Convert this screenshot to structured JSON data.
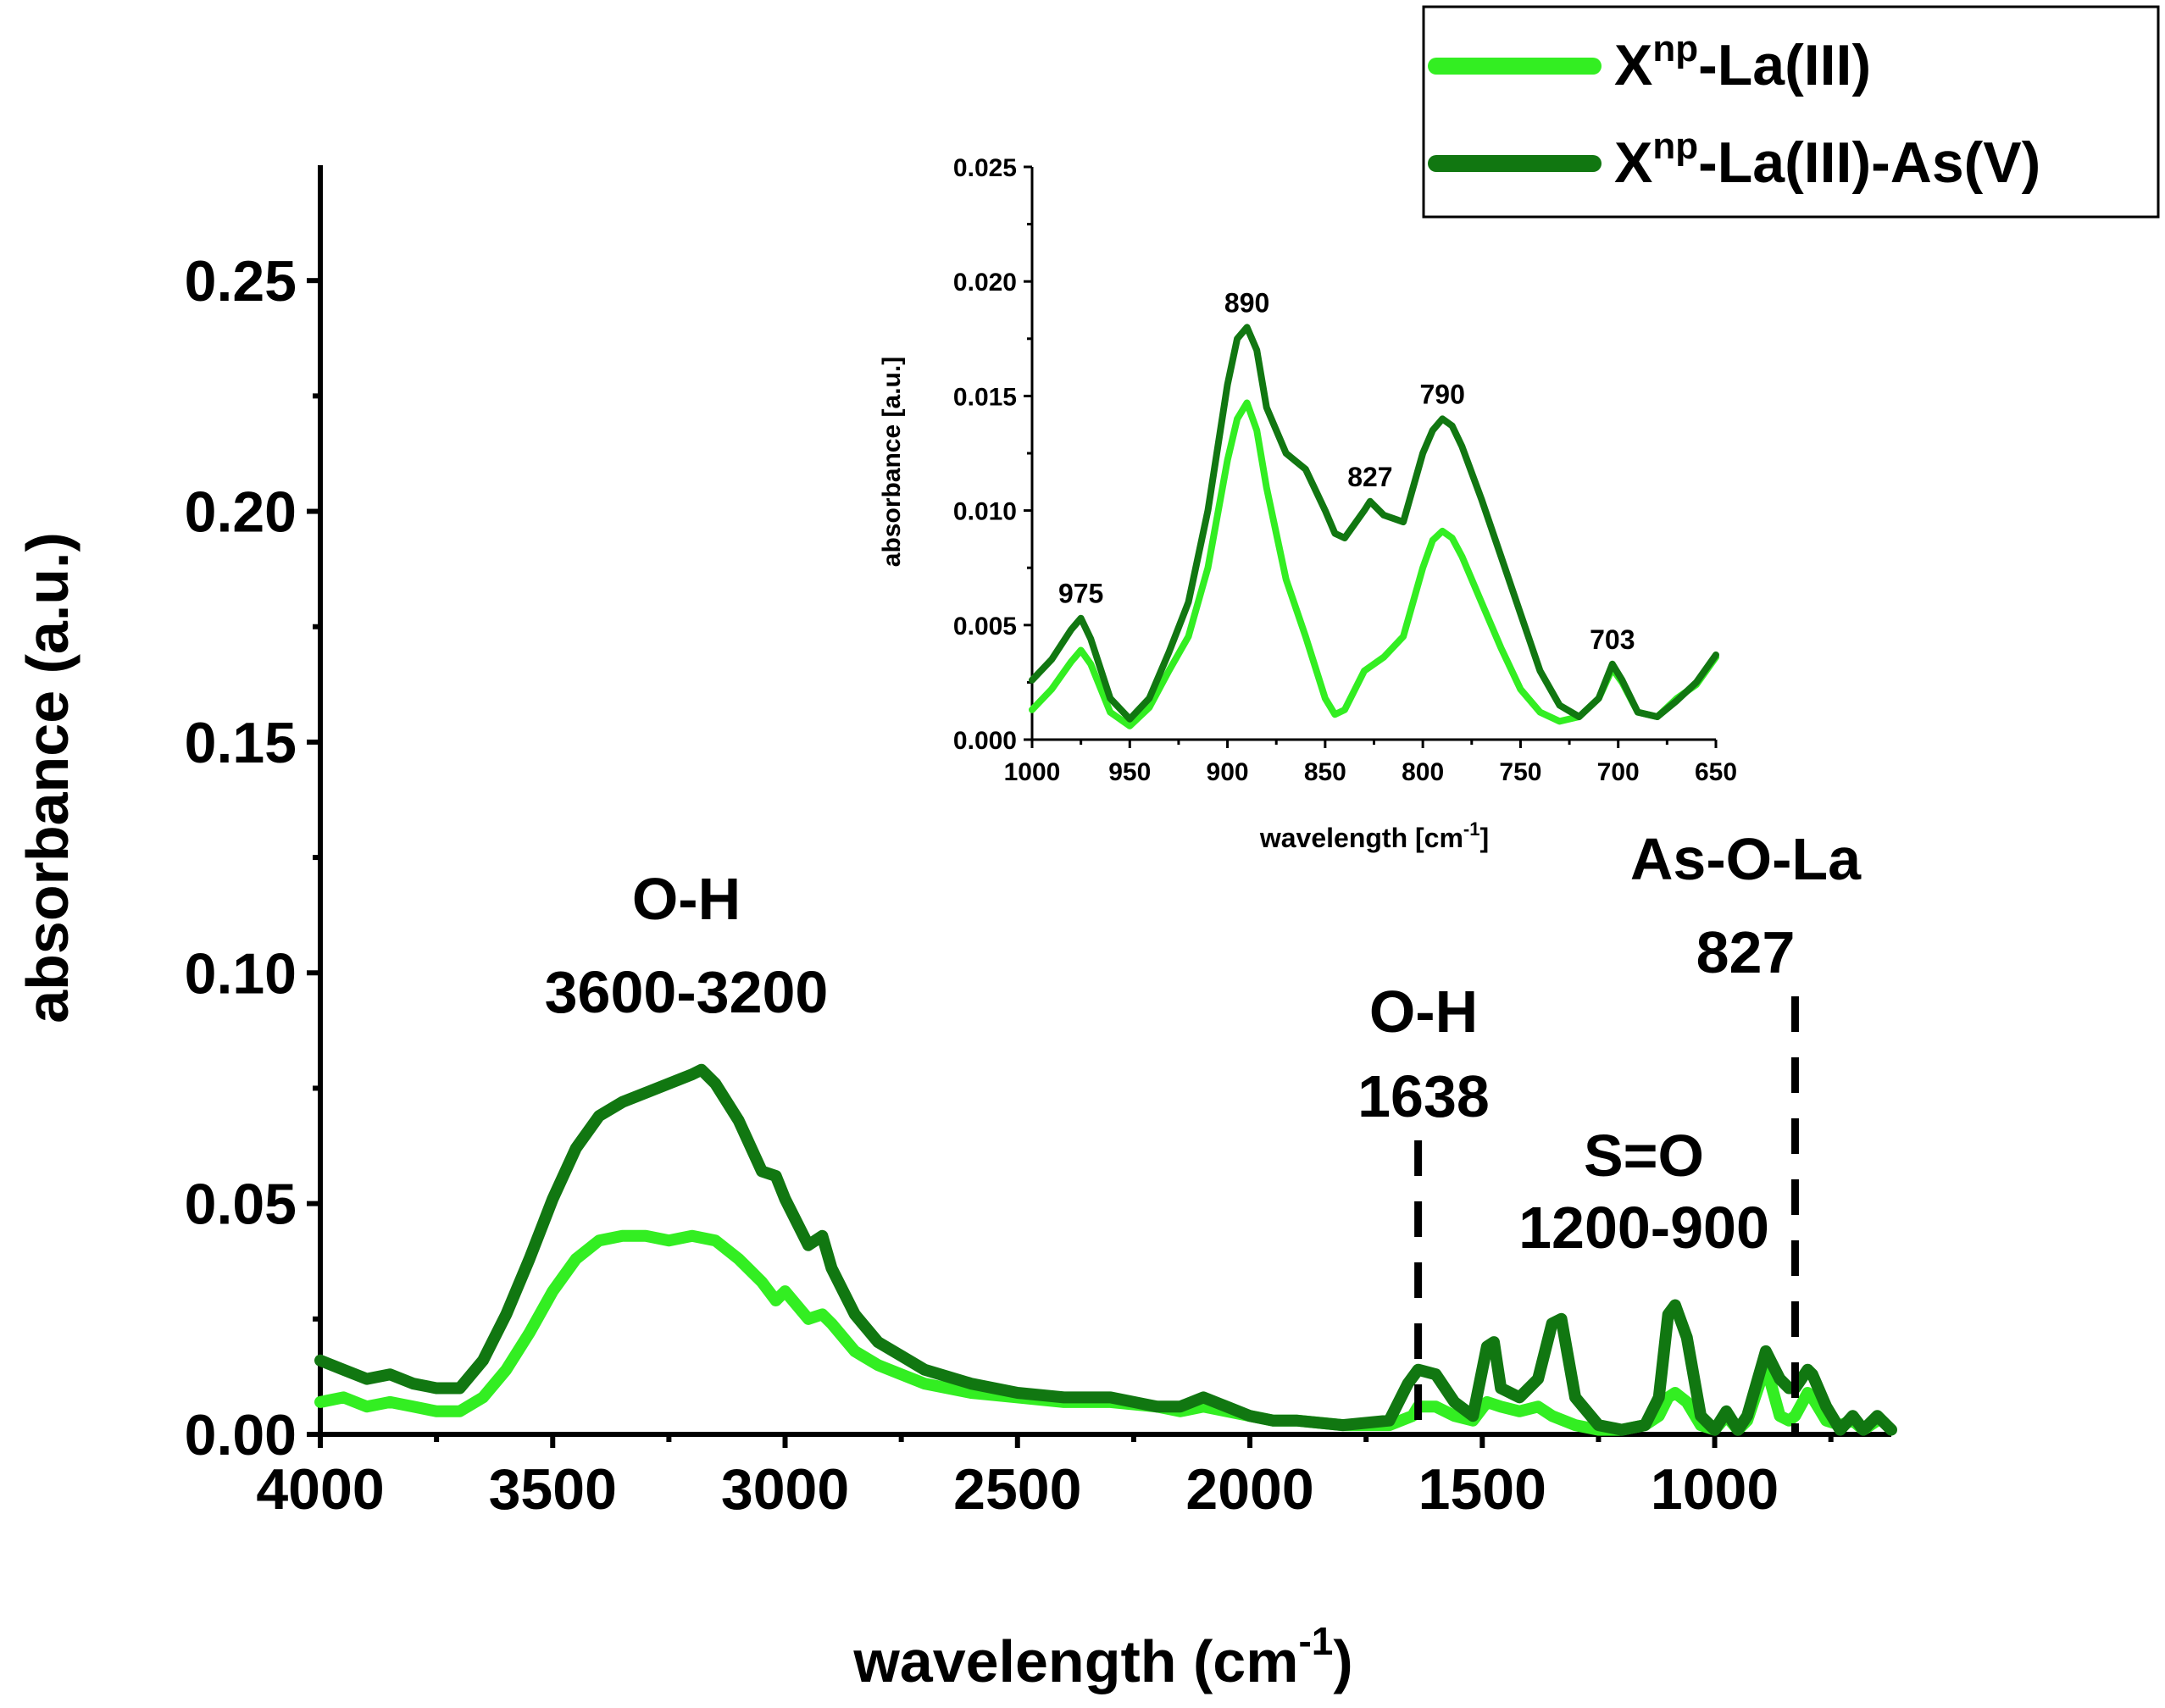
{
  "colors": {
    "light": "#33ee22",
    "dark": "#117711",
    "axis": "#000000"
  },
  "chart_data": [
    {
      "type": "line",
      "title": "",
      "xlabel": "wavelength (cm",
      "xlabel_sup": "-1",
      "xlabel_close": ")",
      "ylabel": "absorbance (a.u.)",
      "xlim": [
        4000,
        620
      ],
      "ylim": [
        0,
        0.275
      ],
      "xticks": [
        4000,
        3500,
        3000,
        2500,
        2000,
        1500,
        1000
      ],
      "xtick_labels": [
        "4000",
        "3500",
        "3000",
        "2500",
        "2000",
        "1500",
        "1000"
      ],
      "yticks": [
        0,
        0.05,
        0.1,
        0.15,
        0.2,
        0.25
      ],
      "ytick_labels": [
        "0.00",
        "0.05",
        "0.10",
        "0.15",
        "0.20",
        "0.25"
      ],
      "legend": {
        "position": "top-right",
        "entries": [
          {
            "base": "X",
            "sup": "np",
            "rest": "-La(III)"
          },
          {
            "base": "X",
            "sup": "np",
            "rest": "-La(III)-As(V)"
          }
        ]
      },
      "annotations": [
        {
          "line1": "O-H",
          "line2": "3600-3200",
          "x": 3150
        },
        {
          "line1": "O-H",
          "line2": "1638",
          "x": 1638,
          "dashed": true
        },
        {
          "line1": "S=O",
          "line2": "1200-900",
          "x": 1050
        },
        {
          "line1": "As-O-La",
          "line2": "827",
          "x": 827,
          "dashed": true
        }
      ],
      "series": [
        {
          "name": "Xnp-La(III)",
          "x": [
            4000,
            3950,
            3900,
            3850,
            3800,
            3750,
            3700,
            3650,
            3600,
            3550,
            3500,
            3450,
            3400,
            3350,
            3300,
            3250,
            3200,
            3150,
            3100,
            3050,
            3020,
            3000,
            2950,
            2920,
            2900,
            2850,
            2800,
            2750,
            2700,
            2600,
            2500,
            2400,
            2300,
            2200,
            2150,
            2100,
            2050,
            2000,
            1950,
            1900,
            1800,
            1700,
            1650,
            1638,
            1600,
            1560,
            1520,
            1490,
            1460,
            1420,
            1380,
            1350,
            1300,
            1250,
            1200,
            1150,
            1120,
            1100,
            1085,
            1060,
            1030,
            1000,
            975,
            950,
            930,
            890,
            860,
            840,
            827,
            800,
            790,
            760,
            730,
            703,
            680,
            650
          ],
          "y": [
            0.007,
            0.008,
            0.006,
            0.007,
            0.006,
            0.005,
            0.005,
            0.008,
            0.014,
            0.022,
            0.031,
            0.038,
            0.042,
            0.043,
            0.043,
            0.042,
            0.043,
            0.042,
            0.038,
            0.033,
            0.029,
            0.031,
            0.025,
            0.026,
            0.024,
            0.018,
            0.015,
            0.013,
            0.011,
            0.009,
            0.008,
            0.007,
            0.007,
            0.006,
            0.005,
            0.006,
            0.005,
            0.004,
            0.003,
            0.003,
            0.002,
            0.002,
            0.004,
            0.006,
            0.006,
            0.004,
            0.003,
            0.007,
            0.006,
            0.005,
            0.006,
            0.004,
            0.002,
            0.001,
            0.001,
            0.002,
            0.004,
            0.008,
            0.009,
            0.007,
            0.002,
            0.001,
            0.004,
            0.001,
            0.003,
            0.015,
            0.004,
            0.003,
            0.004,
            0.009,
            0.008,
            0.003,
            0.002,
            0.003,
            0.001,
            0.003
          ]
        },
        {
          "name": "Xnp-La(III)-As(V)",
          "x": [
            4000,
            3950,
            3900,
            3850,
            3800,
            3750,
            3700,
            3650,
            3600,
            3550,
            3500,
            3450,
            3400,
            3350,
            3300,
            3250,
            3200,
            3180,
            3150,
            3100,
            3050,
            3020,
            3000,
            2950,
            2920,
            2900,
            2850,
            2800,
            2750,
            2700,
            2600,
            2500,
            2400,
            2300,
            2200,
            2150,
            2100,
            2050,
            2000,
            1950,
            1900,
            1800,
            1700,
            1660,
            1638,
            1600,
            1560,
            1520,
            1490,
            1475,
            1460,
            1420,
            1380,
            1350,
            1330,
            1300,
            1250,
            1200,
            1150,
            1120,
            1100,
            1085,
            1060,
            1030,
            1000,
            975,
            950,
            930,
            890,
            860,
            840,
            827,
            800,
            790,
            760,
            730,
            703,
            680,
            650,
            620
          ],
          "y": [
            0.016,
            0.014,
            0.012,
            0.013,
            0.011,
            0.01,
            0.01,
            0.016,
            0.026,
            0.038,
            0.051,
            0.062,
            0.069,
            0.072,
            0.074,
            0.076,
            0.078,
            0.079,
            0.076,
            0.068,
            0.057,
            0.056,
            0.051,
            0.041,
            0.043,
            0.036,
            0.026,
            0.02,
            0.017,
            0.014,
            0.011,
            0.009,
            0.008,
            0.008,
            0.006,
            0.006,
            0.008,
            0.006,
            0.004,
            0.003,
            0.003,
            0.002,
            0.003,
            0.011,
            0.014,
            0.013,
            0.007,
            0.004,
            0.019,
            0.02,
            0.01,
            0.008,
            0.012,
            0.024,
            0.025,
            0.008,
            0.002,
            0.001,
            0.002,
            0.008,
            0.026,
            0.028,
            0.021,
            0.004,
            0.001,
            0.005,
            0.001,
            0.004,
            0.018,
            0.012,
            0.01,
            0.01,
            0.014,
            0.013,
            0.006,
            0.001,
            0.004,
            0.001,
            0.004,
            0.001
          ]
        }
      ]
    },
    {
      "type": "line",
      "title": "",
      "xlabel": "wavelength [cm",
      "xlabel_sup": "-1",
      "xlabel_close": "]",
      "ylabel": "absorbance [a.u.]",
      "xlim": [
        1000,
        650
      ],
      "ylim": [
        0,
        0.025
      ],
      "xticks": [
        1000,
        950,
        900,
        850,
        800,
        750,
        700,
        650
      ],
      "xtick_labels": [
        "1000",
        "950",
        "900",
        "850",
        "800",
        "750",
        "700",
        "650"
      ],
      "yticks": [
        0,
        0.005,
        0.01,
        0.015,
        0.02,
        0.025
      ],
      "ytick_labels": [
        "0.000",
        "0.005",
        "0.010",
        "0.015",
        "0.020",
        "0.025"
      ],
      "peak_labels": [
        {
          "text": "975",
          "x": 975,
          "y": 0.0053
        },
        {
          "text": "890",
          "x": 890,
          "y": 0.018
        },
        {
          "text": "827",
          "x": 827,
          "y": 0.0104
        },
        {
          "text": "790",
          "x": 790,
          "y": 0.014
        },
        {
          "text": "703",
          "x": 703,
          "y": 0.0033
        }
      ],
      "series": [
        {
          "name": "Xnp-La(III)",
          "x": [
            1000,
            990,
            980,
            975,
            970,
            960,
            950,
            940,
            930,
            920,
            910,
            900,
            895,
            890,
            885,
            880,
            870,
            860,
            850,
            845,
            840,
            830,
            820,
            810,
            800,
            795,
            790,
            785,
            780,
            770,
            760,
            750,
            740,
            730,
            720,
            710,
            703,
            698,
            690,
            680,
            670,
            660,
            650
          ],
          "y": [
            0.0013,
            0.0022,
            0.0034,
            0.0039,
            0.0033,
            0.0012,
            0.0006,
            0.0014,
            0.003,
            0.0045,
            0.0075,
            0.0122,
            0.014,
            0.0147,
            0.0135,
            0.011,
            0.007,
            0.0045,
            0.0018,
            0.0011,
            0.0013,
            0.003,
            0.0036,
            0.0045,
            0.0075,
            0.0087,
            0.0091,
            0.0088,
            0.008,
            0.006,
            0.004,
            0.0022,
            0.0012,
            0.0008,
            0.001,
            0.0018,
            0.0031,
            0.0025,
            0.0012,
            0.001,
            0.0018,
            0.0024,
            0.0036
          ]
        },
        {
          "name": "Xnp-La(III)-As(V)",
          "x": [
            1000,
            990,
            980,
            975,
            970,
            960,
            950,
            940,
            930,
            920,
            910,
            900,
            895,
            890,
            885,
            880,
            870,
            860,
            850,
            845,
            840,
            830,
            827,
            820,
            810,
            800,
            795,
            790,
            785,
            780,
            770,
            760,
            750,
            740,
            730,
            720,
            710,
            703,
            698,
            690,
            680,
            670,
            660,
            650
          ],
          "y": [
            0.0026,
            0.0035,
            0.0048,
            0.0053,
            0.0044,
            0.0018,
            0.0009,
            0.0018,
            0.0038,
            0.006,
            0.01,
            0.0155,
            0.0175,
            0.018,
            0.017,
            0.0145,
            0.0125,
            0.0118,
            0.01,
            0.009,
            0.0088,
            0.01,
            0.0104,
            0.0098,
            0.0095,
            0.0125,
            0.0135,
            0.014,
            0.0137,
            0.0128,
            0.0105,
            0.008,
            0.0055,
            0.003,
            0.0015,
            0.001,
            0.0018,
            0.0033,
            0.0026,
            0.0012,
            0.001,
            0.0017,
            0.0025,
            0.0037
          ]
        }
      ]
    }
  ]
}
